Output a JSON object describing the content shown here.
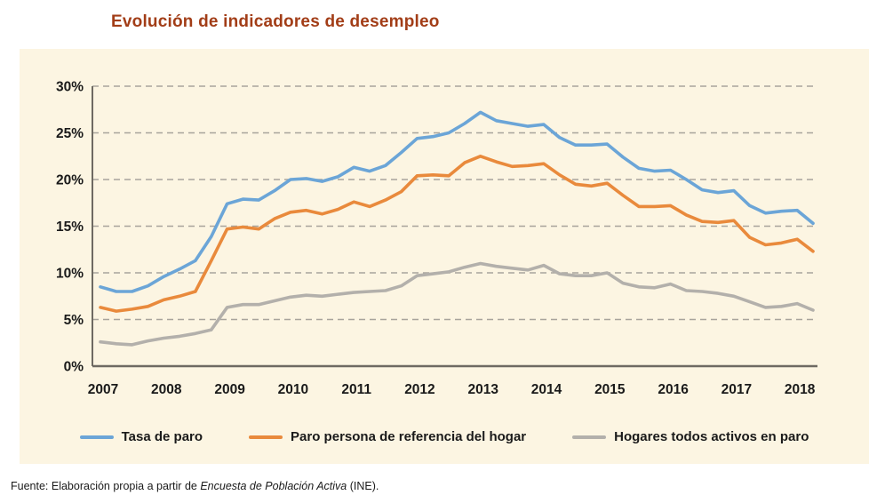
{
  "title": "Evolución de indicadores de desempleo",
  "source": {
    "prefix": "Fuente: Elaboración propia a partir de ",
    "italic": "Encuesta de Población Activa",
    "suffix": " (INE)."
  },
  "colors": {
    "title_text": "#a23d17",
    "panel_background": "#fcf5e2",
    "gridline": "#a8a49c",
    "axis": "#6e6a62",
    "tick_text": "#1a1a1a"
  },
  "chart_data": {
    "type": "line",
    "frequency": "quarterly",
    "x_start": "2007-Q1",
    "x_end": "2018-Q2",
    "x_years": [
      2007,
      2008,
      2009,
      2010,
      2011,
      2012,
      2013,
      2014,
      2015,
      2016,
      2017,
      2018
    ],
    "ylim": [
      0,
      30
    ],
    "ytick_step": 5,
    "ytick_labels": [
      "0%",
      "5%",
      "10%",
      "15%",
      "20%",
      "25%",
      "30%"
    ],
    "grid": "horizontal-dashed",
    "legend_position": "bottom",
    "series": [
      {
        "name": "Tasa de paro",
        "color": "#6ba5d7",
        "values": [
          8.5,
          8.0,
          8.0,
          8.6,
          9.6,
          10.4,
          11.3,
          13.9,
          17.4,
          17.9,
          17.8,
          18.8,
          20.0,
          20.1,
          19.8,
          20.3,
          21.3,
          20.9,
          21.5,
          22.9,
          24.4,
          24.6,
          25.0,
          26.0,
          27.2,
          26.3,
          26.0,
          25.7,
          25.9,
          24.5,
          23.7,
          23.7,
          23.8,
          22.4,
          21.2,
          20.9,
          21.0,
          20.0,
          18.9,
          18.6,
          18.8,
          17.2,
          16.4,
          16.6,
          16.7,
          15.3
        ]
      },
      {
        "name": "Paro persona de referencia del hogar",
        "color": "#e98a3c",
        "values": [
          6.3,
          5.9,
          6.1,
          6.4,
          7.1,
          7.5,
          8.0,
          11.3,
          14.7,
          14.9,
          14.7,
          15.8,
          16.5,
          16.7,
          16.3,
          16.8,
          17.6,
          17.1,
          17.8,
          18.7,
          20.4,
          20.5,
          20.4,
          21.8,
          22.5,
          21.9,
          21.4,
          21.5,
          21.7,
          20.5,
          19.5,
          19.3,
          19.6,
          18.3,
          17.1,
          17.1,
          17.2,
          16.2,
          15.5,
          15.4,
          15.6,
          13.8,
          13.0,
          13.2,
          13.6,
          12.3
        ]
      },
      {
        "name": "Hogares todos activos en paro",
        "color": "#b3b0ab",
        "values": [
          2.6,
          2.4,
          2.3,
          2.7,
          3.0,
          3.2,
          3.5,
          3.9,
          6.3,
          6.6,
          6.6,
          7.0,
          7.4,
          7.6,
          7.5,
          7.7,
          7.9,
          8.0,
          8.1,
          8.6,
          9.7,
          9.9,
          10.1,
          10.6,
          11.0,
          10.7,
          10.5,
          10.3,
          10.8,
          9.9,
          9.7,
          9.7,
          10.0,
          8.9,
          8.5,
          8.4,
          8.8,
          8.1,
          8.0,
          7.8,
          7.5,
          6.9,
          6.3,
          6.4,
          6.7,
          6.0
        ]
      }
    ]
  }
}
